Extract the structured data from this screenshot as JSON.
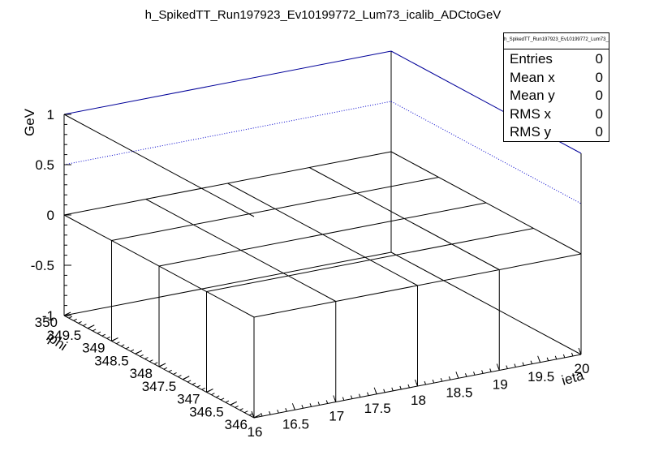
{
  "chart_data": {
    "type": "lego3d",
    "title": "h_SpikedTT_Run197923_Ev10199772_Lum73_icalib_ADCtoGeV",
    "xlabel": "ieta",
    "ylabel": "iphi",
    "zlabel": "GeV",
    "xlim": [
      16,
      20
    ],
    "ylim": [
      346,
      350
    ],
    "zlim": [
      -1,
      1
    ],
    "x_bins": [
      16,
      17,
      18,
      19,
      20
    ],
    "y_bins": [
      346,
      347,
      348,
      349,
      350
    ],
    "values": [
      [
        0,
        0,
        0,
        0
      ],
      [
        0,
        0,
        0,
        0
      ],
      [
        0,
        0,
        0,
        0
      ],
      [
        0,
        0,
        0,
        0
      ]
    ],
    "x_tick_labels": [
      "16",
      "16.5",
      "17",
      "17.5",
      "18",
      "18.5",
      "19",
      "19.5",
      "20"
    ],
    "y_tick_labels": [
      "346",
      "346.5",
      "347",
      "347.5",
      "348",
      "348.5",
      "349",
      "349.5",
      "350"
    ],
    "z_tick_labels": [
      "-1",
      "-0.5",
      "0",
      "0.5",
      "1"
    ],
    "x_ticks": [
      16,
      16.5,
      17,
      17.5,
      18,
      18.5,
      19,
      19.5,
      20
    ],
    "y_ticks": [
      346,
      346.5,
      347,
      347.5,
      348,
      348.5,
      349,
      349.5,
      350
    ],
    "z_ticks": [
      -1,
      -0.5,
      0,
      0.5,
      1
    ],
    "grid": true
  },
  "stats": {
    "title": "h_SpikedTT_Run197923_Ev10199772_Lum73_icalib_ADCtoGeV",
    "rows": [
      {
        "label": "Entries",
        "value": "0"
      },
      {
        "label": "Mean x",
        "value": "0"
      },
      {
        "label": "Mean y",
        "value": "0"
      },
      {
        "label": "RMS x",
        "value": "0"
      },
      {
        "label": "RMS y",
        "value": "0"
      }
    ]
  },
  "colors": {
    "frame": "#000000",
    "back_top": "#000099",
    "grid_dotted": "#0000cc"
  }
}
